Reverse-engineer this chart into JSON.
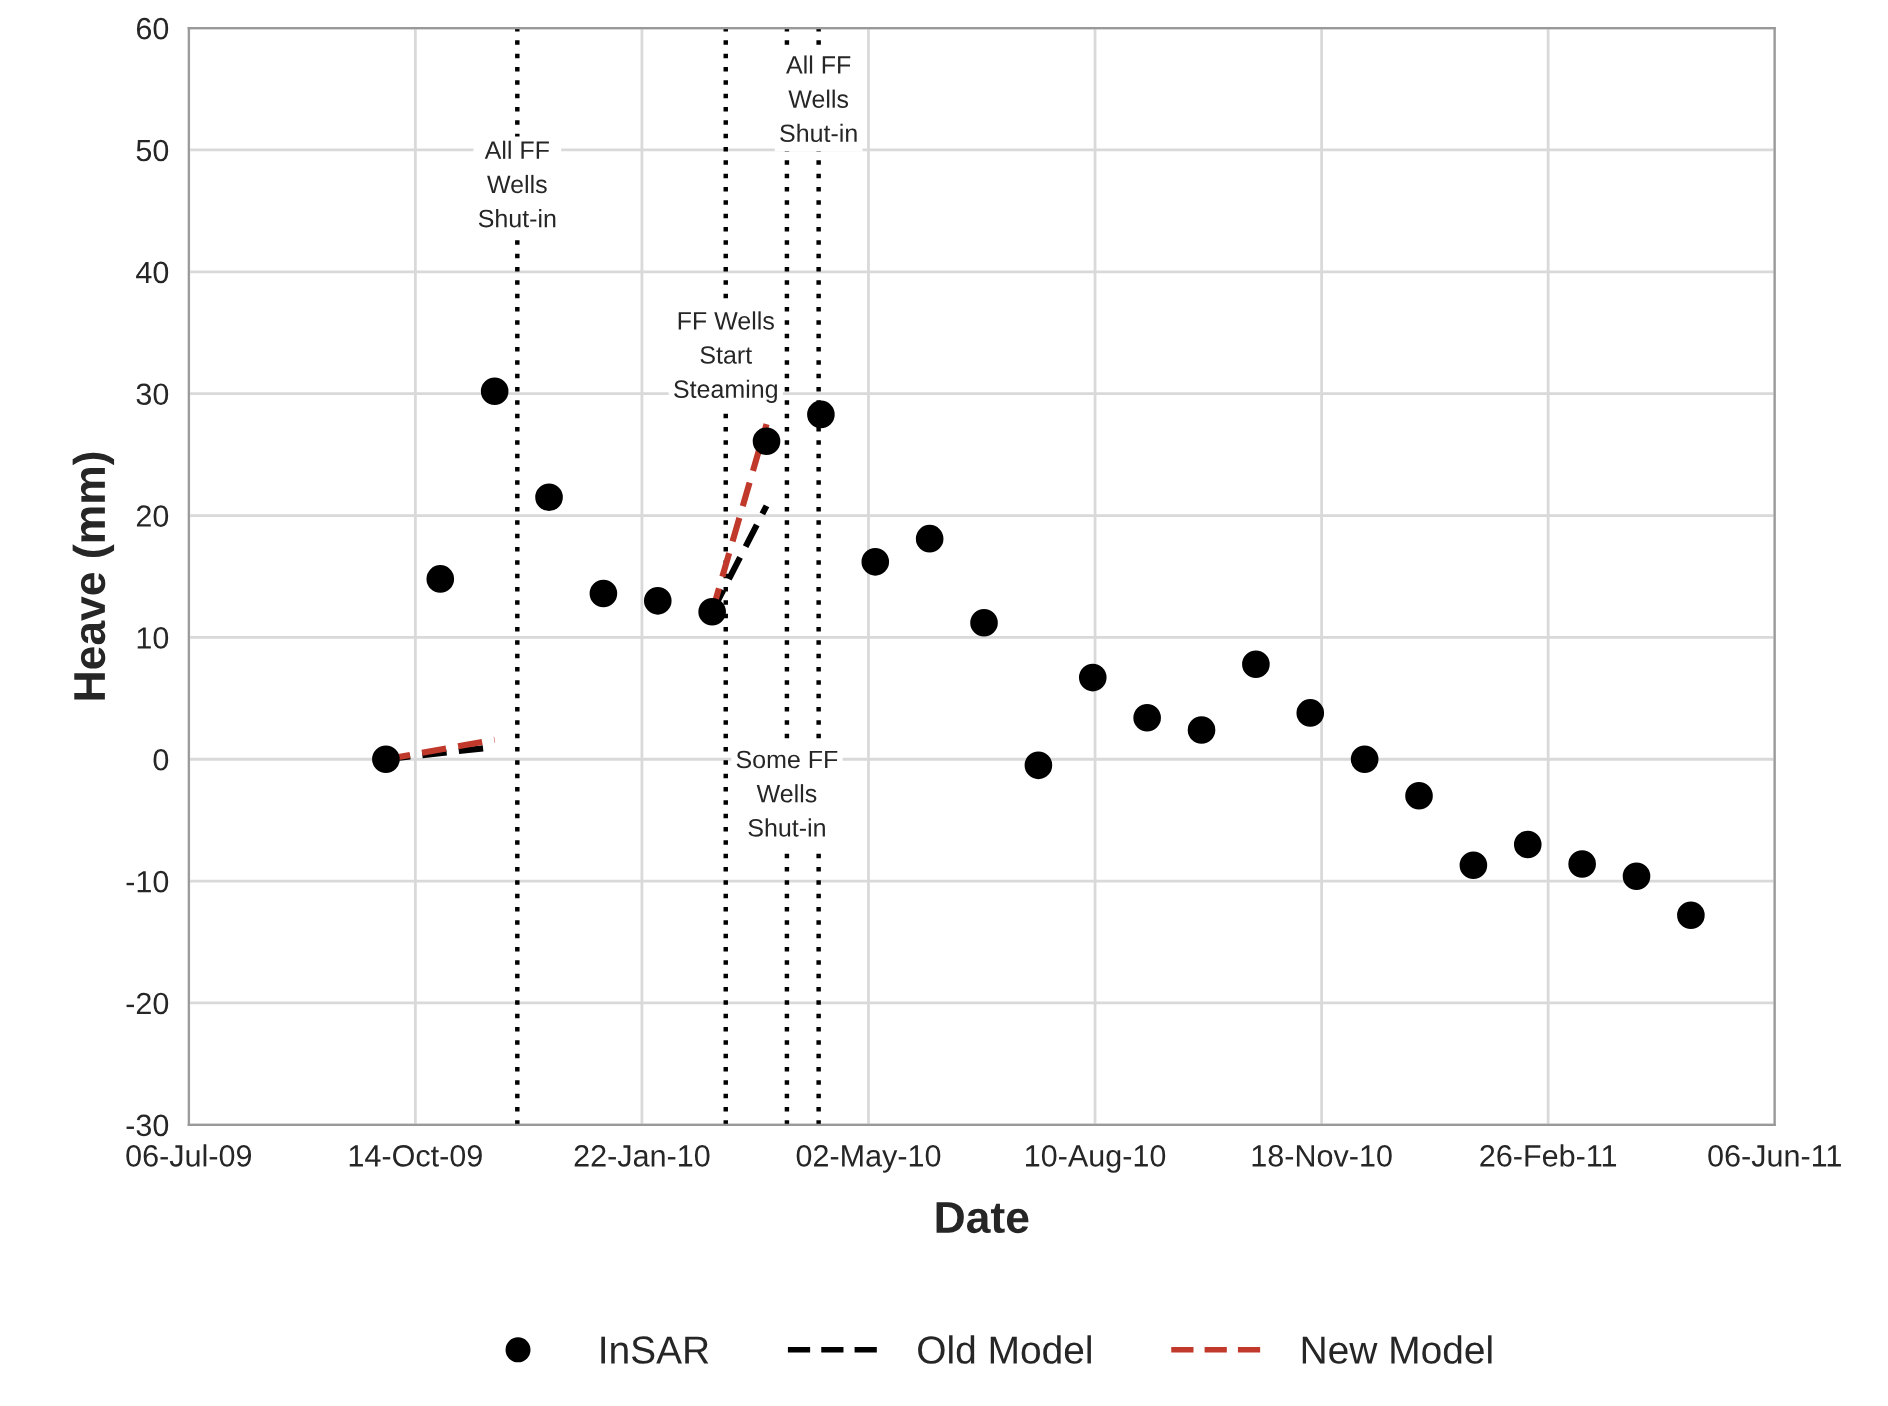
{
  "chart_data": {
    "type": "scatter",
    "xlabel": "Date",
    "ylabel": "Heave (mm)",
    "xlim": [
      "2009-07-06",
      "2011-06-06"
    ],
    "ylim": [
      -30,
      60
    ],
    "xticks": [
      {
        "value": "2009-07-06",
        "label": "06-Jul-09"
      },
      {
        "value": "2009-10-14",
        "label": "14-Oct-09"
      },
      {
        "value": "2010-01-22",
        "label": "22-Jan-10"
      },
      {
        "value": "2010-05-02",
        "label": "02-May-10"
      },
      {
        "value": "2010-08-10",
        "label": "10-Aug-10"
      },
      {
        "value": "2010-11-18",
        "label": "18-Nov-10"
      },
      {
        "value": "2011-02-26",
        "label": "26-Feb-11"
      },
      {
        "value": "2011-06-06",
        "label": "06-Jun-11"
      }
    ],
    "yticks": [
      -30,
      -20,
      -10,
      0,
      10,
      20,
      30,
      40,
      50,
      60
    ],
    "grid": true,
    "legend": "bottom",
    "series": [
      {
        "name": "InSAR",
        "marker": "circle",
        "color": "#000000",
        "x": [
          "2009-10-01",
          "2009-10-25",
          "2009-11-18",
          "2009-12-12",
          "2010-01-05",
          "2010-01-29",
          "2010-02-22",
          "2010-03-18",
          "2010-04-11",
          "2010-05-05",
          "2010-05-29",
          "2010-06-22",
          "2010-07-16",
          "2010-08-09",
          "2010-09-02",
          "2010-09-26",
          "2010-10-20",
          "2010-11-13",
          "2010-12-07",
          "2010-12-31",
          "2011-01-24",
          "2011-02-17",
          "2011-03-13",
          "2011-04-06",
          "2011-04-30"
        ],
        "values": [
          0,
          14.8,
          30.2,
          21.5,
          13.6,
          13.0,
          12.1,
          26.1,
          28.3,
          16.2,
          18.1,
          11.2,
          -0.5,
          6.7,
          3.4,
          2.4,
          7.8,
          3.8,
          0,
          -3.0,
          -8.7,
          -7.0,
          -8.6,
          -9.6,
          -12.8
        ]
      },
      {
        "name": "Old Model",
        "type": "line",
        "line_style": "dashed",
        "marker": "none",
        "color": "#000000",
        "x": [
          "2009-10-01",
          "2009-11-18",
          "2010-01-05",
          "2010-02-22",
          "2010-03-18"
        ],
        "values": [
          0,
          1.0,
          null,
          12.1,
          20.8
        ]
      },
      {
        "name": "New Model",
        "type": "line",
        "line_style": "dashed",
        "marker": "none",
        "color": "#c0392b",
        "x": [
          "2009-10-01",
          "2009-11-18",
          "2010-01-05",
          "2010-02-22",
          "2010-03-18"
        ],
        "values": [
          0,
          1.6,
          null,
          12.1,
          27.5
        ]
      }
    ],
    "ref_lines": [
      {
        "axis": "x",
        "value": "2009-11-28",
        "label": "All FF\nWells\nShut-in",
        "line_style": "dotted",
        "color": "#000000"
      },
      {
        "axis": "x",
        "value": "2010-02-28",
        "label": "FF Wells\nStart\nSteaming",
        "line_style": "dotted",
        "color": "#000000"
      },
      {
        "axis": "x",
        "value": "2010-03-27",
        "label": "Some FF\nWells\nShut-in",
        "line_style": "dotted",
        "color": "#000000"
      },
      {
        "axis": "x",
        "value": "2010-04-10",
        "label": "All FF\nWells\nShut-in",
        "line_style": "dotted",
        "color": "#000000"
      }
    ]
  }
}
